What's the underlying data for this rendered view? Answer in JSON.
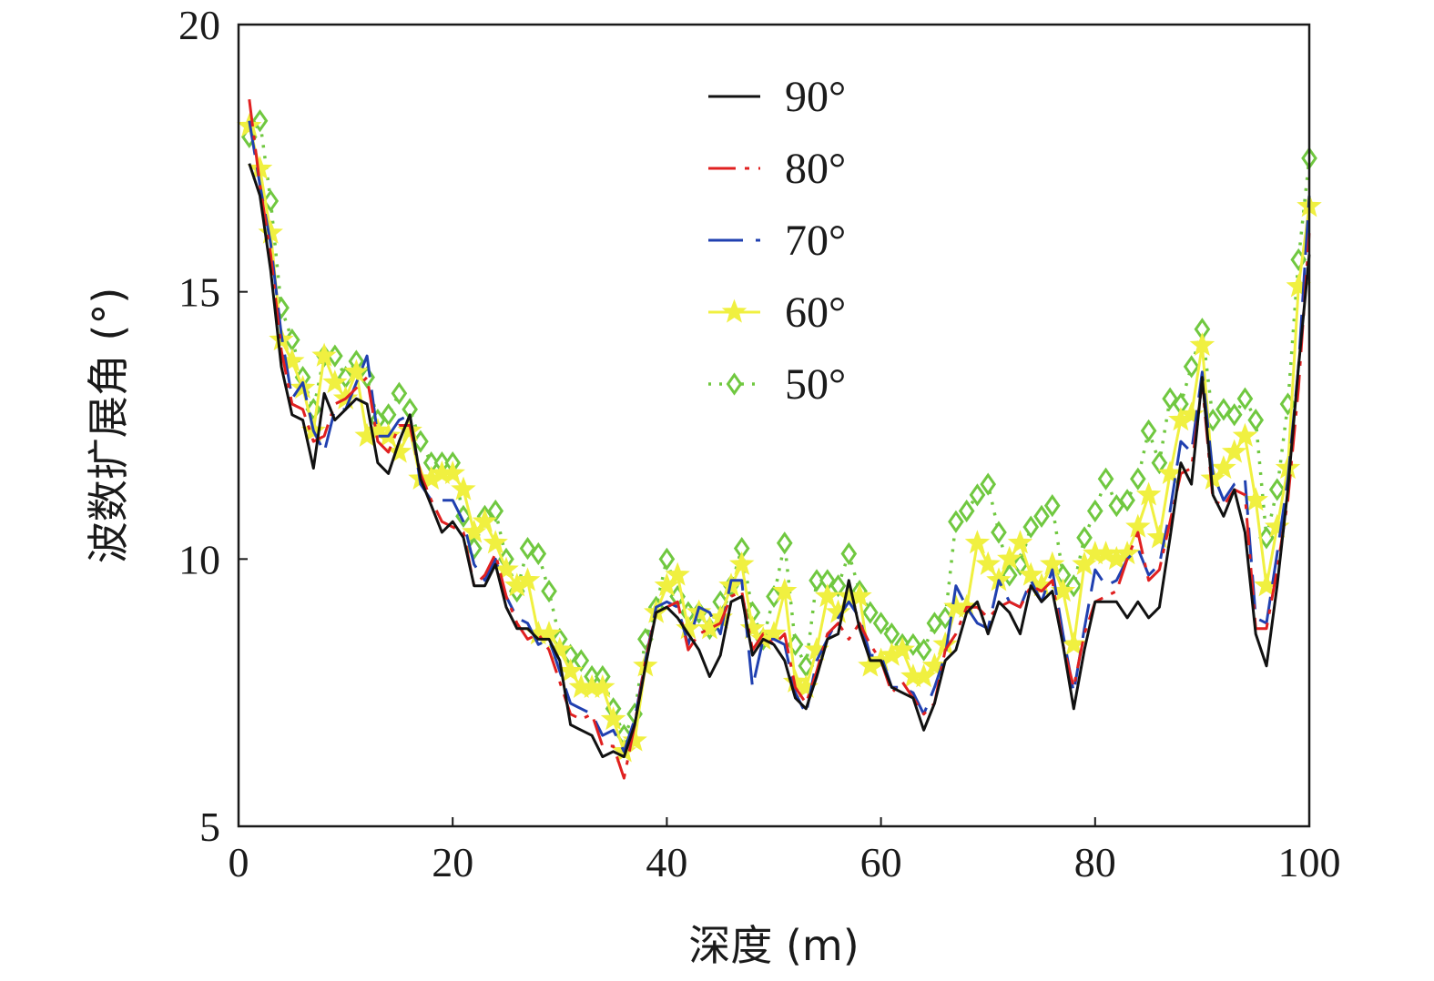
{
  "chart_data": {
    "type": "line",
    "title": "",
    "xlabel": "深度 (m)",
    "ylabel": "波数扩展角 (°)",
    "xlim": [
      0,
      100
    ],
    "ylim": [
      5,
      20
    ],
    "xticks": [
      0,
      20,
      40,
      60,
      80,
      100
    ],
    "yticks": [
      5,
      10,
      15,
      20
    ],
    "x_tick_labels": [
      "0",
      "20",
      "40",
      "60",
      "80",
      "100"
    ],
    "y_tick_labels": [
      "5",
      "10",
      "15",
      "20"
    ],
    "grid": false,
    "legend_placement": "top-center",
    "x": [
      1,
      2,
      3,
      4,
      5,
      6,
      7,
      8,
      9,
      10,
      11,
      12,
      13,
      14,
      15,
      16,
      17,
      18,
      19,
      20,
      21,
      22,
      23,
      24,
      25,
      26,
      27,
      28,
      29,
      30,
      31,
      32,
      33,
      34,
      35,
      36,
      37,
      38,
      39,
      40,
      41,
      42,
      43,
      44,
      45,
      46,
      47,
      48,
      49,
      50,
      51,
      52,
      53,
      54,
      55,
      56,
      57,
      58,
      59,
      60,
      61,
      62,
      63,
      64,
      65,
      66,
      67,
      68,
      69,
      70,
      71,
      72,
      73,
      74,
      75,
      76,
      77,
      78,
      79,
      80,
      81,
      82,
      83,
      84,
      85,
      86,
      87,
      88,
      89,
      90,
      91,
      92,
      93,
      94,
      95,
      96,
      97,
      98,
      99,
      100
    ],
    "series": [
      {
        "name": "90°",
        "color": "#111111",
        "dash": "solid",
        "marker": "none",
        "values": [
          17.4,
          16.8,
          15.4,
          13.6,
          12.7,
          12.6,
          11.7,
          13.1,
          12.6,
          12.8,
          13.0,
          12.9,
          11.8,
          11.6,
          12.2,
          12.7,
          11.5,
          11.0,
          10.5,
          10.7,
          10.4,
          9.5,
          9.5,
          9.9,
          9.1,
          8.7,
          8.7,
          8.5,
          8.5,
          8.1,
          6.9,
          6.8,
          6.7,
          6.3,
          6.4,
          6.3,
          6.9,
          8.0,
          9.0,
          9.1,
          8.9,
          8.6,
          8.3,
          7.8,
          8.2,
          9.2,
          9.3,
          8.2,
          8.5,
          8.4,
          8.1,
          7.4,
          7.2,
          7.8,
          8.5,
          8.6,
          9.6,
          8.7,
          8.1,
          8.1,
          7.6,
          7.5,
          7.4,
          6.8,
          7.3,
          8.1,
          8.3,
          9.0,
          9.2,
          8.6,
          9.2,
          9.0,
          8.6,
          9.5,
          9.2,
          9.4,
          8.4,
          7.2,
          8.3,
          9.2,
          9.2,
          9.2,
          8.9,
          9.2,
          8.9,
          9.1,
          10.4,
          11.8,
          11.4,
          13.4,
          11.2,
          10.8,
          11.3,
          10.5,
          8.6,
          8.0,
          9.5,
          11.3,
          13.6,
          15.7
        ]
      },
      {
        "name": "80°",
        "color": "#e02020",
        "dash": "dashdot",
        "marker": "none",
        "values": [
          18.6,
          17.0,
          15.7,
          13.9,
          12.9,
          12.8,
          12.2,
          12.3,
          12.9,
          13.0,
          13.2,
          13.4,
          12.2,
          12.0,
          12.5,
          12.5,
          11.6,
          11.1,
          10.7,
          10.6,
          10.5,
          9.5,
          9.7,
          10.1,
          9.3,
          8.8,
          8.5,
          8.6,
          8.3,
          7.7,
          7.1,
          7.0,
          7.1,
          6.5,
          6.5,
          5.9,
          6.9,
          8.1,
          9.0,
          9.1,
          9.2,
          8.3,
          8.6,
          8.7,
          8.8,
          9.3,
          9.4,
          8.3,
          8.6,
          8.4,
          8.6,
          7.6,
          7.3,
          7.9,
          8.6,
          8.8,
          8.5,
          8.8,
          8.4,
          8.1,
          7.5,
          7.7,
          7.4,
          7.1,
          7.3,
          8.3,
          8.6,
          9.1,
          9.1,
          8.9,
          9.1,
          9.2,
          9.1,
          9.5,
          9.4,
          9.6,
          8.4,
          7.6,
          8.6,
          9.2,
          9.3,
          9.4,
          10.0,
          10.5,
          9.6,
          9.8,
          10.7,
          11.6,
          11.7,
          13.3,
          11.1,
          11.0,
          11.3,
          11.2,
          8.7,
          8.7,
          9.8,
          11.1,
          13.2,
          16.1
        ]
      },
      {
        "name": "70°",
        "color": "#2040b0",
        "dash": "longdash",
        "marker": "none",
        "values": [
          18.2,
          17.0,
          15.9,
          14.2,
          13.0,
          13.3,
          12.4,
          12.0,
          12.8,
          12.8,
          13.3,
          13.8,
          12.3,
          12.3,
          12.6,
          12.7,
          11.4,
          11.1,
          11.1,
          11.1,
          10.7,
          9.9,
          9.6,
          10.0,
          9.3,
          8.9,
          8.8,
          8.4,
          8.5,
          7.9,
          7.3,
          7.2,
          7.1,
          6.7,
          6.8,
          6.4,
          7.0,
          8.1,
          9.1,
          9.2,
          9.1,
          8.4,
          9.1,
          9.0,
          8.6,
          9.6,
          9.6,
          7.6,
          8.5,
          8.5,
          8.4,
          7.5,
          7.1,
          8.1,
          8.5,
          8.9,
          9.2,
          8.9,
          8.2,
          8.2,
          7.6,
          7.6,
          7.5,
          7.1,
          7.6,
          8.2,
          9.5,
          9.1,
          8.8,
          8.7,
          9.6,
          9.2,
          9.1,
          9.6,
          9.2,
          9.8,
          8.6,
          7.5,
          8.7,
          9.8,
          9.5,
          9.6,
          10.0,
          10.2,
          9.7,
          9.9,
          10.9,
          12.2,
          12.0,
          13.5,
          11.6,
          11.1,
          11.4,
          11.5,
          8.9,
          8.8,
          10.1,
          11.5,
          13.6,
          16.8
        ]
      },
      {
        "name": "60°",
        "color": "#f0f040",
        "dash": "solid",
        "marker": "star",
        "values": [
          18.1,
          17.3,
          16.1,
          14.1,
          13.7,
          13.2,
          12.4,
          13.8,
          13.3,
          13.0,
          13.5,
          12.3,
          12.4,
          12.3,
          12.0,
          12.4,
          11.5,
          11.5,
          11.6,
          11.6,
          11.3,
          10.5,
          10.7,
          10.3,
          9.8,
          9.5,
          9.6,
          8.6,
          8.6,
          8.3,
          7.9,
          7.6,
          7.6,
          7.6,
          7.0,
          6.4,
          6.6,
          8.0,
          9.0,
          9.5,
          9.7,
          8.7,
          9.0,
          8.7,
          8.9,
          9.5,
          9.9,
          8.7,
          8.5,
          8.6,
          9.4,
          7.7,
          7.6,
          8.3,
          9.3,
          9.0,
          9.3,
          9.3,
          8.0,
          8.1,
          8.2,
          8.3,
          7.8,
          7.8,
          8.0,
          8.4,
          9.1,
          9.1,
          10.3,
          9.9,
          9.6,
          10.0,
          10.3,
          9.7,
          9.5,
          9.9,
          9.4,
          8.4,
          9.9,
          10.1,
          10.1,
          10.0,
          10.1,
          10.6,
          11.2,
          10.4,
          11.6,
          12.6,
          12.7,
          14.0,
          11.5,
          11.7,
          12.0,
          12.3,
          11.1,
          9.5,
          10.6,
          11.7,
          15.1,
          16.6
        ]
      },
      {
        "name": "50°",
        "color": "#70c840",
        "dash": "dotted",
        "marker": "diamond",
        "values": [
          17.9,
          18.2,
          16.7,
          14.7,
          14.1,
          13.4,
          12.8,
          13.8,
          13.8,
          13.4,
          13.7,
          13.4,
          12.6,
          12.7,
          13.1,
          12.8,
          12.2,
          11.8,
          11.8,
          11.8,
          10.8,
          10.2,
          10.8,
          10.9,
          10.0,
          9.4,
          10.2,
          10.1,
          9.4,
          8.5,
          8.2,
          8.1,
          7.8,
          7.8,
          7.2,
          6.7,
          7.1,
          8.5,
          9.1,
          10.0,
          9.3,
          9.0,
          9.0,
          8.7,
          9.2,
          9.5,
          10.2,
          9.0,
          8.5,
          9.3,
          10.3,
          8.4,
          8.0,
          9.6,
          9.6,
          9.5,
          10.1,
          9.4,
          9.0,
          8.8,
          8.6,
          8.4,
          8.4,
          8.3,
          8.8,
          8.9,
          10.7,
          10.9,
          11.2,
          11.4,
          10.5,
          9.7,
          9.9,
          10.6,
          10.8,
          11.0,
          9.7,
          9.5,
          10.4,
          10.9,
          11.5,
          11.0,
          11.1,
          11.5,
          12.4,
          11.8,
          13.0,
          12.9,
          13.6,
          14.3,
          12.6,
          12.8,
          12.7,
          13.0,
          12.6,
          10.4,
          11.3,
          12.9,
          15.6,
          17.5
        ]
      }
    ]
  }
}
